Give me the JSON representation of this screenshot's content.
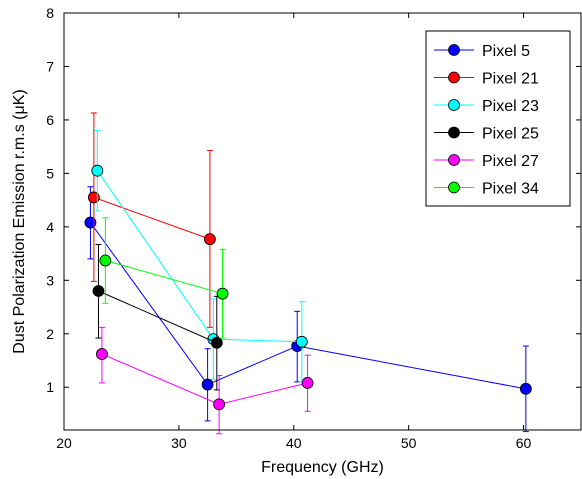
{
  "chart_data": {
    "type": "scatter",
    "xlabel": "Frequency (GHz)",
    "ylabel": "Dust Polarization Emission r.m.s (μK)",
    "xlim": [
      20,
      65
    ],
    "ylim": [
      0.2,
      8
    ],
    "xticks": [
      20,
      30,
      40,
      50,
      60
    ],
    "yticks": [
      1,
      2,
      3,
      4,
      5,
      6,
      7,
      8
    ],
    "xtick_labels": [
      "20",
      "30",
      "40",
      "50",
      "60"
    ],
    "ytick_labels": [
      "1",
      "2",
      "3",
      "4",
      "5",
      "6",
      "7",
      "8"
    ],
    "grid": false,
    "legend_position": "top-right",
    "series": [
      {
        "name": "Pixel 5",
        "color": "#0000ff",
        "points": [
          {
            "x": 22.3,
            "y": 4.08,
            "lo": 3.4,
            "hi": 4.75
          },
          {
            "x": 32.5,
            "y": 1.05,
            "lo": 0.37,
            "hi": 1.72
          },
          {
            "x": 40.3,
            "y": 1.77,
            "lo": 1.1,
            "hi": 2.42
          },
          {
            "x": 60.2,
            "y": 0.97,
            "lo": 0.17,
            "hi": 1.77
          }
        ]
      },
      {
        "name": "Pixel 21",
        "color": "#ff0000",
        "points": [
          {
            "x": 22.6,
            "y": 4.55,
            "lo": 2.98,
            "hi": 6.13
          },
          {
            "x": 32.7,
            "y": 3.77,
            "lo": 2.12,
            "hi": 5.43
          }
        ]
      },
      {
        "name": "Pixel 23",
        "color": "#00ffff",
        "points": [
          {
            "x": 22.9,
            "y": 5.05,
            "lo": 4.3,
            "hi": 5.8
          },
          {
            "x": 33.0,
            "y": 1.9,
            "lo": 1.15,
            "hi": 2.65
          },
          {
            "x": 40.7,
            "y": 1.85,
            "lo": 1.1,
            "hi": 2.6
          }
        ]
      },
      {
        "name": "Pixel 25",
        "color": "#000000",
        "points": [
          {
            "x": 23.0,
            "y": 2.8,
            "lo": 1.92,
            "hi": 3.67
          },
          {
            "x": 33.3,
            "y": 1.83,
            "lo": 0.95,
            "hi": 2.7
          }
        ]
      },
      {
        "name": "Pixel 27",
        "color": "#ff00ff",
        "points": [
          {
            "x": 23.3,
            "y": 1.62,
            "lo": 1.08,
            "hi": 2.12
          },
          {
            "x": 33.5,
            "y": 0.68,
            "lo": 0.13,
            "hi": 1.22
          },
          {
            "x": 41.2,
            "y": 1.08,
            "lo": 0.55,
            "hi": 1.6
          }
        ]
      },
      {
        "name": "Pixel 34",
        "color": "#00ff00",
        "points": [
          {
            "x": 23.6,
            "y": 3.37,
            "lo": 2.57,
            "hi": 4.17
          },
          {
            "x": 33.8,
            "y": 2.75,
            "lo": 1.92,
            "hi": 3.58
          }
        ]
      }
    ]
  }
}
